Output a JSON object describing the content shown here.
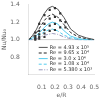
{
  "chart_data": {
    "type": "line",
    "xlabel": "e/R",
    "ylabel": "Nu/Nu₀",
    "xlim": [
      0.0,
      0.5
    ],
    "ylim": [
      0.6,
      1.4
    ],
    "xticks": [
      0.1,
      0.2,
      0.3,
      0.4,
      0.5
    ],
    "yticks": [
      0.8,
      {
        "value": 1.0,
        "label": "1.0"
      },
      1.2,
      1.4
    ],
    "grid": false,
    "legend": "lower right",
    "reference_lines": [
      {
        "y": 1.0,
        "color": "#bbbbbb"
      }
    ],
    "series": [
      {
        "name": "Re = 4.93 x 10⁵",
        "type": "line",
        "color": "#555555",
        "line_style": "solid",
        "x": [
          0.0,
          0.03,
          0.06,
          0.09,
          0.12,
          0.15,
          0.18,
          0.22,
          0.27,
          0.32,
          0.38,
          0.44,
          0.5
        ],
        "values": [
          1.0,
          1.05,
          1.12,
          1.22,
          1.3,
          1.36,
          1.38,
          1.35,
          1.25,
          1.12,
          1.05,
          1.02,
          1.0
        ]
      },
      {
        "name": "Re = 9.65 x 10⁴",
        "type": "line",
        "color": "#222222",
        "line_style": "dashed",
        "x": [
          0.0,
          0.03,
          0.06,
          0.09,
          0.12,
          0.15,
          0.18,
          0.22,
          0.27,
          0.32,
          0.38,
          0.44,
          0.5
        ],
        "values": [
          1.0,
          1.03,
          1.08,
          1.15,
          1.22,
          1.27,
          1.29,
          1.26,
          1.17,
          1.08,
          1.03,
          1.01,
          1.0
        ]
      },
      {
        "name": "Re = 3.0 x 10⁴",
        "type": "line",
        "color": "#55ccee",
        "line_style": "solid",
        "x": [
          0.0,
          0.03,
          0.06,
          0.09,
          0.12,
          0.15,
          0.18,
          0.22,
          0.27,
          0.32,
          0.38,
          0.44,
          0.5
        ],
        "values": [
          1.0,
          1.02,
          1.05,
          1.09,
          1.14,
          1.18,
          1.2,
          1.18,
          1.1,
          1.04,
          1.01,
          1.0,
          1.0
        ]
      },
      {
        "name": "Re = 1.08 x 10⁴",
        "type": "line",
        "color": "#55ccee",
        "line_style": "dashed",
        "x": [
          0.0,
          0.03,
          0.06,
          0.09,
          0.12,
          0.15,
          0.18,
          0.22,
          0.27,
          0.32,
          0.38,
          0.44,
          0.5
        ],
        "values": [
          1.0,
          1.01,
          1.03,
          1.06,
          1.09,
          1.11,
          1.12,
          1.1,
          1.05,
          1.02,
          1.0,
          1.0,
          1.0
        ]
      },
      {
        "name": "Re = 5.380 x 10³",
        "type": "line",
        "color": "#9999bb",
        "line_style": "dashdot",
        "x": [
          0.0,
          0.03,
          0.06,
          0.09,
          0.12,
          0.15,
          0.18,
          0.22,
          0.27,
          0.32,
          0.38,
          0.44,
          0.5
        ],
        "values": [
          1.0,
          1.0,
          1.01,
          1.03,
          1.05,
          1.06,
          1.07,
          1.06,
          1.03,
          1.01,
          1.0,
          1.0,
          1.0
        ]
      },
      {
        "type": "scatter",
        "color": "#333333",
        "marker": "square",
        "x": [
          0.05,
          0.08,
          0.12,
          0.16,
          0.2,
          0.24,
          0.28
        ],
        "values": [
          1.08,
          1.18,
          1.28,
          1.34,
          1.36,
          1.3,
          1.2
        ]
      },
      {
        "type": "scatter",
        "color": "#333333",
        "marker": "square",
        "x": [
          0.05,
          0.08,
          0.12,
          0.16,
          0.2,
          0.24,
          0.28
        ],
        "values": [
          1.04,
          1.1,
          1.18,
          1.24,
          1.26,
          1.22,
          1.14
        ]
      },
      {
        "type": "scatter",
        "color": "#333333",
        "marker": "square",
        "x": [
          0.05,
          0.08,
          0.12,
          0.16,
          0.2,
          0.24
        ],
        "values": [
          1.02,
          1.06,
          1.11,
          1.16,
          1.18,
          1.14
        ]
      },
      {
        "type": "scatter",
        "color": "#333333",
        "marker": "square",
        "x": [
          0.05,
          0.08,
          0.12,
          0.16,
          0.2
        ],
        "values": [
          1.01,
          1.03,
          1.07,
          1.1,
          1.11
        ]
      },
      {
        "type": "scatter",
        "color": "#333333",
        "marker": "square",
        "x": [
          0.05,
          0.08,
          0.12
        ],
        "values": [
          1.0,
          1.01,
          1.03
        ]
      }
    ]
  }
}
